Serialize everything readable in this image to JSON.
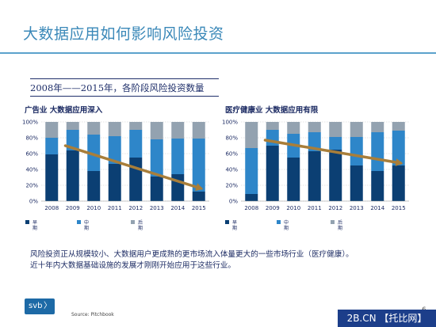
{
  "header": {
    "title": "大数据应用如何影响风险投资",
    "subtitle": "2008年——2015年，各阶段风险投资数量"
  },
  "colors": {
    "early": "#0b3f73",
    "mid": "#2e86c9",
    "late": "#93a2b0",
    "trend": "#a87e3a",
    "title": "#3a88b8"
  },
  "chart_data": [
    {
      "type": "bar",
      "title": "广告业 大数据应用深入",
      "categories": [
        "2008",
        "2009",
        "2010",
        "2011",
        "2012",
        "2013",
        "2014",
        "2015"
      ],
      "y_ticks": [
        "0%",
        "20%",
        "40%",
        "60%",
        "80%",
        "100%"
      ],
      "ylim": [
        0,
        100
      ],
      "stacked": true,
      "series": [
        {
          "name": "早期",
          "values": [
            59,
            64,
            38,
            47,
            55,
            31,
            34,
            12
          ]
        },
        {
          "name": "中期",
          "values": [
            21,
            26,
            46,
            35,
            35,
            47,
            45,
            67
          ]
        },
        {
          "name": "后期",
          "values": [
            20,
            10,
            16,
            18,
            10,
            22,
            21,
            21
          ]
        }
      ],
      "trend_line": {
        "from": [
          "2009",
          70
        ],
        "to": [
          "2015",
          16
        ]
      }
    },
    {
      "type": "bar",
      "title": "医疗健康业 大数据应用有限",
      "categories": [
        "2008",
        "2009",
        "2010",
        "2011",
        "2012",
        "2013",
        "2014",
        "2015"
      ],
      "y_ticks": [
        "0%",
        "20%",
        "40%",
        "60%",
        "80%",
        "100%"
      ],
      "ylim": [
        0,
        100
      ],
      "stacked": true,
      "series": [
        {
          "name": "早期",
          "values": [
            9,
            70,
            55,
            63,
            65,
            45,
            38,
            45
          ]
        },
        {
          "name": "中期",
          "values": [
            58,
            20,
            30,
            24,
            16,
            36,
            49,
            44
          ]
        },
        {
          "name": "后期",
          "values": [
            33,
            10,
            15,
            13,
            19,
            19,
            13,
            11
          ]
        }
      ],
      "trend_line": {
        "from": [
          "2009",
          77
        ],
        "to": [
          "2015",
          48
        ]
      }
    }
  ],
  "description": {
    "line1": "风险投资正从规模较小、大数据用户更成熟的更市场流入体量更大的一些市场行业（医疗健康）。",
    "line2": "近十年内大数据基础设施的发展才刚刚开始应用于这些行业。"
  },
  "footer": {
    "logo_text": "svb",
    "logo_arrow": "〉",
    "source": "Source: Pitchbook",
    "page_number": "6",
    "watermark": "2B.CN 【托比网】"
  }
}
